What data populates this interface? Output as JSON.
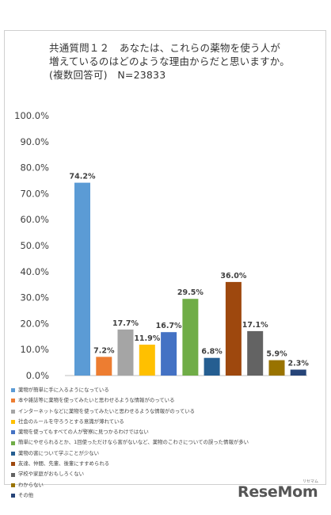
{
  "title_lines": [
    "共通質問１２　あなたは、これらの薬物を使う人が",
    "増えているのはどのような理由からだと思いますか。(複数回答可)　N=23833"
  ],
  "chart_data": {
    "type": "bar",
    "y_ticks": [
      "0.0%",
      "10.0%",
      "20.0%",
      "30.0%",
      "40.0%",
      "50.0%",
      "60.0%",
      "70.0%",
      "80.0%",
      "90.0%",
      "100.0%"
    ],
    "ylim": [
      0,
      100
    ],
    "categories": [
      "薬物が簡単に手に入るようになっている",
      "本や雑誌等に薬物を使ってみたいと思わせるような情報がのっている",
      "インターネットなどに薬物を使ってみたいと思わせるような情報がのっている",
      "社会のルールを守ろうとする意識が薄れている",
      "薬物を使ってもすべての人が警察に見つかるわけではない",
      "簡単にやせられるとか、1回使っただけなら害がないなど、薬物のこわさについての誤った情報が多い",
      "薬物の害について学ぶことが少ない",
      "友達、仲間、先輩、後輩にすすめられる",
      "学校や家庭がおもしろくない",
      "わからない",
      "その他"
    ],
    "values": [
      74.2,
      7.2,
      17.7,
      11.9,
      16.7,
      29.5,
      6.8,
      36.0,
      17.1,
      5.9,
      2.3
    ],
    "labels": [
      "74.2%",
      "7.2%",
      "17.7%",
      "11.9%",
      "16.7%",
      "29.5%",
      "6.8%",
      "36.0%",
      "17.1%",
      "5.9%",
      "2.3%"
    ],
    "colors": [
      "#5b9bd5",
      "#ed7d31",
      "#a5a5a5",
      "#ffc000",
      "#4472c4",
      "#70ad47",
      "#255e91",
      "#9e480e",
      "#636363",
      "#997300",
      "#264478"
    ]
  },
  "logo": {
    "text": "ReseMom",
    "sub": "リセマム"
  }
}
